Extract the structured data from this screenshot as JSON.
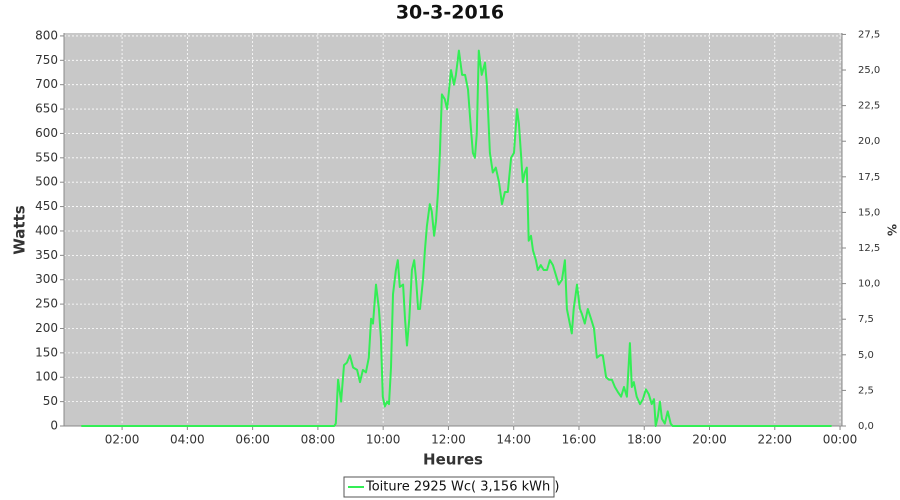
{
  "chart_data": {
    "type": "line",
    "title": "30-3-2016",
    "x_label": "Heures",
    "y_label": "Watts",
    "y2_label": "%",
    "legend": "bottom",
    "grid": true,
    "xlim": [
      0.22,
      24.06
    ],
    "xticks": [
      {
        "value": 2,
        "label": "02:00"
      },
      {
        "value": 4,
        "label": "04:00"
      },
      {
        "value": 6,
        "label": "06:00"
      },
      {
        "value": 8,
        "label": "08:00"
      },
      {
        "value": 10,
        "label": "10:00"
      },
      {
        "value": 12,
        "label": "12:00"
      },
      {
        "value": 14,
        "label": "14:00"
      },
      {
        "value": 16,
        "label": "16:00"
      },
      {
        "value": 18,
        "label": "18:00"
      },
      {
        "value": 20,
        "label": "20:00"
      },
      {
        "value": 22,
        "label": "22:00"
      },
      {
        "value": 24,
        "label": "00:00"
      }
    ],
    "ylim": [
      0,
      806
    ],
    "yticks": [
      0,
      50,
      100,
      150,
      200,
      250,
      300,
      350,
      400,
      450,
      500,
      550,
      600,
      650,
      700,
      750,
      800
    ],
    "y2lim": [
      0,
      27.6
    ],
    "y2ticks": [
      {
        "value": 0,
        "label": "0,0"
      },
      {
        "value": 2.5,
        "label": "2,5"
      },
      {
        "value": 5,
        "label": "5,0"
      },
      {
        "value": 7.5,
        "label": "7,5"
      },
      {
        "value": 10,
        "label": "10,0"
      },
      {
        "value": 12.5,
        "label": "12,5"
      },
      {
        "value": 15,
        "label": "15,0"
      },
      {
        "value": 17.5,
        "label": "17,5"
      },
      {
        "value": 20,
        "label": "20,0"
      },
      {
        "value": 22.5,
        "label": "22,5"
      },
      {
        "value": 25,
        "label": "25,0"
      },
      {
        "value": 27.5,
        "label": "27,5"
      }
    ],
    "x": [
      0.75,
      7.0,
      8.5,
      8.55,
      8.62,
      8.71,
      8.8,
      8.89,
      8.98,
      9.08,
      9.2,
      9.29,
      9.38,
      9.47,
      9.56,
      9.63,
      9.69,
      9.78,
      9.87,
      9.93,
      9.99,
      10.05,
      10.12,
      10.18,
      10.24,
      10.3,
      10.39,
      10.45,
      10.51,
      10.61,
      10.67,
      10.73,
      10.8,
      10.88,
      10.95,
      11.01,
      11.07,
      11.13,
      11.22,
      11.28,
      11.34,
      11.43,
      11.49,
      11.56,
      11.62,
      11.68,
      11.74,
      11.8,
      11.89,
      11.96,
      12.02,
      12.08,
      12.17,
      12.23,
      12.32,
      12.42,
      12.51,
      12.6,
      12.69,
      12.75,
      12.81,
      12.87,
      12.93,
      13.02,
      13.12,
      13.18,
      13.27,
      13.36,
      13.45,
      13.55,
      13.64,
      13.73,
      13.82,
      13.92,
      14.01,
      14.1,
      14.16,
      14.22,
      14.28,
      14.34,
      14.4,
      14.46,
      14.53,
      14.59,
      14.68,
      14.74,
      14.83,
      14.92,
      15.02,
      15.11,
      15.2,
      15.29,
      15.38,
      15.48,
      15.57,
      15.63,
      15.72,
      15.78,
      15.84,
      15.94,
      16.03,
      16.09,
      16.18,
      16.27,
      16.37,
      16.46,
      16.55,
      16.64,
      16.73,
      16.83,
      16.92,
      17.01,
      17.1,
      17.19,
      17.29,
      17.38,
      17.47,
      17.56,
      17.62,
      17.68,
      17.77,
      17.87,
      17.96,
      18.05,
      18.14,
      18.23,
      18.3,
      18.35,
      18.42,
      18.48,
      18.54,
      18.63,
      18.72,
      18.81,
      18.87,
      19.7,
      23.74
    ],
    "series": [
      {
        "name": "Toiture 2925 Wc( 3,156 kWh )",
        "color": "#33ee55",
        "values": [
          0,
          0,
          0,
          5,
          95,
          50,
          125,
          130,
          145,
          120,
          115,
          90,
          115,
          110,
          140,
          220,
          210,
          290,
          240,
          180,
          60,
          40,
          50,
          45,
          120,
          270,
          320,
          340,
          285,
          290,
          220,
          165,
          220,
          320,
          340,
          300,
          240,
          240,
          300,
          360,
          410,
          455,
          440,
          390,
          420,
          480,
          560,
          680,
          670,
          650,
          690,
          730,
          700,
          720,
          770,
          720,
          720,
          690,
          610,
          560,
          550,
          600,
          770,
          720,
          745,
          700,
          560,
          520,
          530,
          500,
          455,
          480,
          480,
          550,
          560,
          650,
          620,
          560,
          500,
          520,
          530,
          380,
          390,
          360,
          340,
          320,
          330,
          320,
          320,
          340,
          330,
          310,
          290,
          300,
          340,
          240,
          210,
          190,
          240,
          290,
          240,
          230,
          210,
          240,
          220,
          200,
          140,
          145,
          145,
          100,
          95,
          95,
          80,
          70,
          60,
          80,
          60,
          170,
          80,
          90,
          60,
          45,
          55,
          75,
          65,
          45,
          55,
          0,
          20,
          50,
          15,
          5,
          30,
          5,
          0,
          0,
          0
        ]
      }
    ]
  }
}
